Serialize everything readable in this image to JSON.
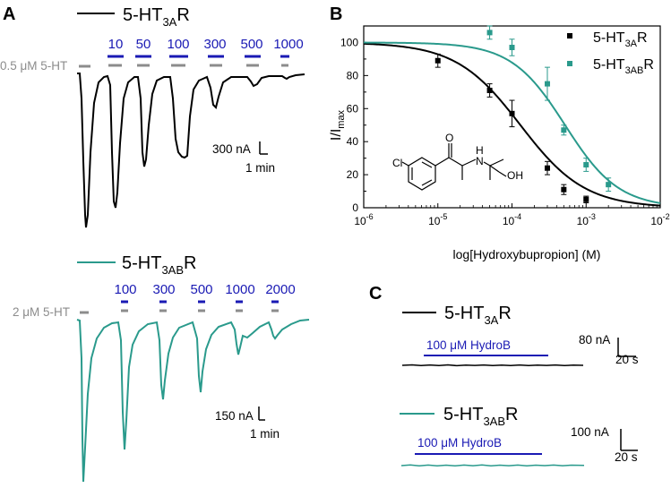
{
  "colors": {
    "black": "#000000",
    "teal": "#2a9a8c",
    "blue": "#1a1ab4",
    "gray": "#8c8c8c"
  },
  "panel_a": {
    "label": "A",
    "top": {
      "legend": "5-HT",
      "legend_sub": "3A",
      "legend_suffix": "R",
      "control_label": "0.5 μM 5-HT",
      "concentrations": [
        "10",
        "50",
        "100",
        "300",
        "500",
        "1000"
      ],
      "scale_current": "300 nA",
      "scale_time": "1 min"
    },
    "bottom": {
      "legend": "5-HT",
      "legend_sub": "3AB",
      "legend_suffix": "R",
      "control_label": "2 μM 5-HT",
      "concentrations": [
        "100",
        "300",
        "500",
        "1000",
        "2000"
      ],
      "scale_current": "150 nA",
      "scale_time": "1 min"
    }
  },
  "panel_b": {
    "label": "B",
    "ylabel_main": "I/I",
    "ylabel_sub": "max",
    "xlabel": "log[Hydroxybupropion] (M)",
    "chem_labels": {
      "cl": "Cl",
      "o": "O",
      "nh": "N",
      "h": "H",
      "oh": "OH"
    }
  },
  "panel_c": {
    "label": "C",
    "top": {
      "legend": "5-HT",
      "legend_sub": "3A",
      "legend_suffix": "R",
      "drug_label": "100 μM HydroB",
      "scale_current": "80 nA",
      "scale_time": "20 s"
    },
    "bottom": {
      "legend": "5-HT",
      "legend_sub": "3AB",
      "legend_suffix": "R",
      "drug_label": "100 μM HydroB",
      "scale_current": "100 nA",
      "scale_time": "20 s"
    }
  },
  "chart_data": {
    "type": "scatter",
    "x_scale": "log",
    "xlim": [
      1e-06,
      0.01
    ],
    "ylim": [
      0,
      110
    ],
    "x_ticks": [
      "10",
      "10",
      "10",
      "10",
      "10"
    ],
    "x_tick_exponents": [
      "-6",
      "-5",
      "-4",
      "-3",
      "-2"
    ],
    "x_tick_values": [
      1e-06,
      1e-05,
      0.0001,
      0.001,
      0.01
    ],
    "y_ticks": [
      "0",
      "20",
      "40",
      "60",
      "80",
      "100"
    ],
    "y_tick_values": [
      0,
      20,
      40,
      60,
      80,
      100
    ],
    "legend_placement": "top-right",
    "series": [
      {
        "name": "5-HT3AR",
        "legend_main": "5-HT",
        "legend_sub": "3A",
        "legend_suffix": "R",
        "color": "#000000",
        "x": [
          1e-05,
          5e-05,
          0.0001,
          0.0003,
          0.0005,
          0.001
        ],
        "y": [
          89,
          71,
          57,
          24,
          11,
          5
        ],
        "err": [
          4,
          4,
          8,
          4,
          3,
          2
        ],
        "fit_ic50": 0.00013,
        "fit_hill": 1.0
      },
      {
        "name": "5-HT3ABR",
        "legend_main": "5-HT",
        "legend_sub": "3AB",
        "legend_suffix": "R",
        "color": "#2a9a8c",
        "x": [
          5e-05,
          0.0001,
          0.0003,
          0.0005,
          0.001,
          0.002
        ],
        "y": [
          106,
          97,
          75,
          47,
          26,
          14
        ],
        "err": [
          4,
          5,
          10,
          3,
          4,
          4
        ],
        "fit_ic50": 0.00052,
        "fit_hill": 1.2
      }
    ]
  }
}
